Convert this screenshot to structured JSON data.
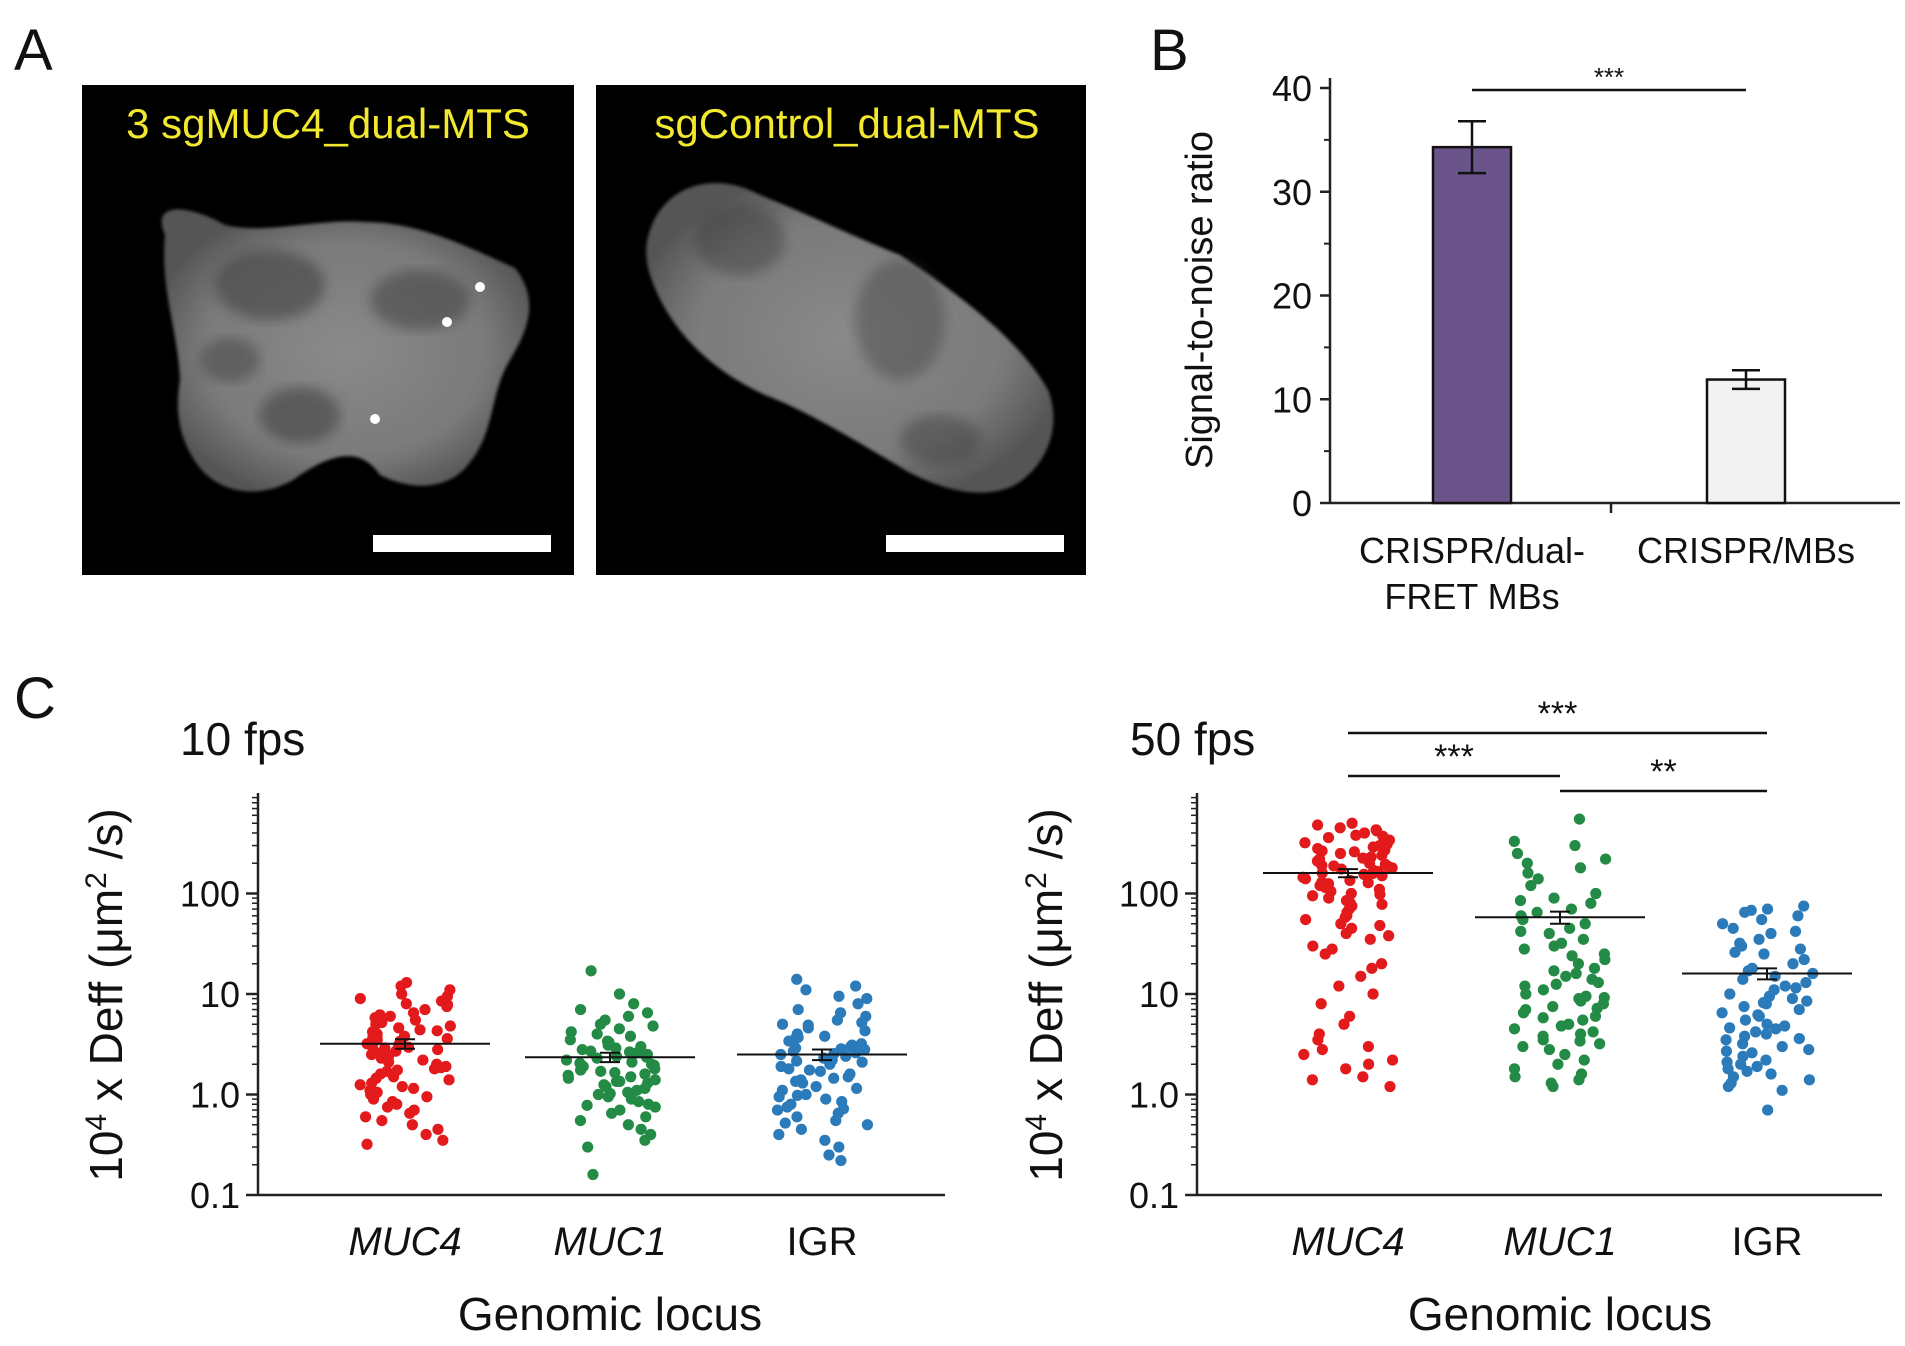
{
  "panels": {
    "a": {
      "letter": "A",
      "images": [
        {
          "label": "3 sgMUC4_dual-MTS",
          "label_color": "#f2e82e"
        },
        {
          "label": "sgControl_dual-MTS",
          "label_color": "#f2e82e"
        }
      ]
    },
    "b": {
      "letter": "B"
    },
    "c": {
      "letter": "C"
    }
  },
  "chart_data": [
    {
      "id": "B",
      "type": "bar",
      "title": "",
      "xlabel": "",
      "ylabel": "Signal-to-noise ratio",
      "ylim": [
        0,
        40
      ],
      "yticks": [
        "0",
        "10",
        "20",
        "30",
        "40"
      ],
      "categories": [
        "CRISPR/dual-FRET MBs",
        "CRISPR/MBs"
      ],
      "category_lines": [
        [
          "CRISPR/dual-",
          "FRET MBs"
        ],
        [
          "CRISPR/MBs"
        ]
      ],
      "values": [
        34.3,
        11.9
      ],
      "errors": [
        2.5,
        0.9
      ],
      "colors": [
        "#6a5489",
        "#f2f2f2"
      ],
      "significance": [
        {
          "from": 0,
          "to": 1,
          "label": "***"
        }
      ]
    },
    {
      "id": "C-10fps",
      "type": "scatter",
      "title": "10 fps",
      "xlabel": "Genomic locus",
      "ylabel_base": "10",
      "ylabel_exp": "4",
      "ylabel_mid": " x Deff (μm",
      "ylabel_exp2": "2",
      "ylabel_end": " /s)",
      "yscale": "log",
      "ylim": [
        0.1,
        1000
      ],
      "yticks": [
        "0.1",
        "1.0",
        "10",
        "100"
      ],
      "categories": [
        "MUC4",
        "MUC1",
        "IGR"
      ],
      "category_italic": [
        true,
        true,
        false
      ],
      "colors": [
        "#e31a1c",
        "#238b45",
        "#2b7bba"
      ],
      "means": [
        3.2,
        2.35,
        2.5
      ],
      "sem": [
        0.35,
        0.25,
        0.3
      ],
      "points": [
        [
          13,
          11,
          10,
          9.5,
          9,
          8.5,
          8,
          7.5,
          7,
          6.5,
          6.2,
          6,
          5.5,
          5.2,
          5,
          4.8,
          4.6,
          4.4,
          4.2,
          4,
          3.9,
          3.8,
          3.6,
          3.5,
          3.4,
          3.3,
          3.2,
          3.1,
          3,
          2.9,
          2.8,
          2.7,
          2.6,
          2.5,
          2.4,
          2.3,
          2.2,
          2.1,
          2,
          1.9,
          1.8,
          1.75,
          1.7,
          1.6,
          1.5,
          1.45,
          1.4,
          1.3,
          1.25,
          1.2,
          1.1,
          1.05,
          1,
          0.95,
          0.9,
          0.85,
          0.8,
          0.75,
          0.7,
          0.65,
          0.6,
          0.55,
          0.5,
          0.45,
          0.4,
          0.35,
          0.32,
          12,
          7.8,
          5.8,
          4.3,
          3.7,
          2.95,
          2.45,
          1.85,
          1.15
        ],
        [
          17,
          10,
          8,
          7,
          6,
          5.5,
          5,
          4.5,
          4.2,
          4,
          3.8,
          3.5,
          3.3,
          3.1,
          3,
          2.8,
          2.7,
          2.6,
          2.5,
          2.4,
          2.3,
          2.2,
          2.1,
          2,
          1.95,
          1.9,
          1.8,
          1.75,
          1.7,
          1.6,
          1.55,
          1.5,
          1.45,
          1.4,
          1.35,
          1.3,
          1.25,
          1.2,
          1.15,
          1.1,
          1.05,
          1,
          0.95,
          0.9,
          0.85,
          0.8,
          0.75,
          0.7,
          0.65,
          0.6,
          0.55,
          0.5,
          0.45,
          0.4,
          0.35,
          0.3,
          0.16,
          3.4,
          2.9,
          2.65,
          2.35,
          2.05,
          1.65,
          1.35,
          1.02,
          0.78,
          6.5,
          4.8
        ],
        [
          14,
          11,
          9,
          8,
          7,
          6,
          5.5,
          5,
          4.6,
          4.3,
          4,
          3.8,
          3.6,
          3.4,
          3.2,
          3,
          2.9,
          2.8,
          2.7,
          2.6,
          2.5,
          2.4,
          2.3,
          2.2,
          2.1,
          2,
          1.9,
          1.8,
          1.7,
          1.6,
          1.5,
          1.45,
          1.4,
          1.3,
          1.2,
          1.15,
          1.1,
          1,
          0.95,
          0.9,
          0.85,
          0.8,
          0.75,
          0.7,
          0.65,
          0.6,
          0.55,
          0.5,
          0.45,
          0.4,
          0.35,
          0.3,
          0.25,
          0.22,
          12,
          6.5,
          5.2,
          3.7,
          3.1,
          2.55,
          2.15,
          1.75,
          1.35,
          0.98,
          0.72,
          0.52,
          9.5,
          4.9,
          2.85
        ]
      ]
    },
    {
      "id": "C-50fps",
      "type": "scatter",
      "title": "50 fps",
      "xlabel": "Genomic locus",
      "ylabel_base": "10",
      "ylabel_exp": "4",
      "ylabel_mid": " x Deff (μm",
      "ylabel_exp2": "2",
      "ylabel_end": " /s)",
      "yscale": "log",
      "ylim": [
        0.1,
        1000
      ],
      "yticks": [
        "0.1",
        "1.0",
        "10",
        "100"
      ],
      "categories": [
        "MUC4",
        "MUC1",
        "IGR"
      ],
      "category_italic": [
        true,
        true,
        false
      ],
      "colors": [
        "#e31a1c",
        "#238b45",
        "#2b7bba"
      ],
      "means": [
        160,
        58,
        16
      ],
      "sem": [
        15,
        8,
        2
      ],
      "points": [
        [
          500,
          450,
          420,
          400,
          380,
          360,
          340,
          320,
          300,
          290,
          280,
          270,
          260,
          250,
          240,
          230,
          220,
          210,
          200,
          195,
          190,
          185,
          180,
          175,
          170,
          165,
          160,
          155,
          150,
          145,
          140,
          135,
          130,
          125,
          120,
          115,
          110,
          105,
          100,
          95,
          90,
          85,
          80,
          75,
          70,
          65,
          60,
          55,
          50,
          45,
          40,
          35,
          30,
          25,
          20,
          15,
          10,
          8,
          6,
          5,
          4,
          3.5,
          3,
          2.8,
          2.5,
          2.2,
          2,
          1.8,
          1.5,
          1.4,
          1.2,
          480,
          430,
          370,
          310,
          265,
          225,
          188,
          158,
          128,
          98,
          78,
          58,
          48,
          38,
          28,
          18,
          12
        ],
        [
          550,
          330,
          300,
          250,
          220,
          200,
          180,
          160,
          140,
          120,
          100,
          90,
          80,
          70,
          60,
          55,
          50,
          45,
          40,
          35,
          30,
          28,
          25,
          22,
          20,
          18,
          16,
          15,
          14,
          13,
          12,
          11,
          10,
          9.5,
          9,
          8.5,
          8,
          7.5,
          7,
          6.5,
          6,
          5.5,
          5,
          4.8,
          4.5,
          4.2,
          4,
          3.8,
          3.5,
          3.2,
          3,
          2.8,
          2.5,
          2.2,
          2,
          1.8,
          1.6,
          1.5,
          1.4,
          1.2,
          1.3,
          85,
          65,
          42,
          32,
          24,
          17,
          12.5,
          9.2,
          7.2,
          5.8,
          3.4
        ],
        [
          75,
          70,
          65,
          60,
          55,
          50,
          45,
          40,
          35,
          32,
          30,
          28,
          25,
          22,
          20,
          18,
          16,
          15,
          14,
          13,
          12,
          11,
          10,
          9.5,
          9,
          8.5,
          8,
          7.5,
          7,
          6.5,
          6,
          5.5,
          5,
          4.8,
          4.5,
          4.2,
          4,
          3.8,
          3.5,
          3.2,
          3,
          2.8,
          2.6,
          2.4,
          2.2,
          2,
          1.9,
          1.8,
          1.7,
          1.6,
          1.5,
          1.4,
          1.3,
          1.2,
          1.1,
          0.7,
          68,
          42,
          26,
          17,
          11.5,
          8.2,
          6.2,
          4.6,
          3.6,
          2.7,
          2.1
        ]
      ],
      "significance": [
        {
          "from": 0,
          "to": 2,
          "label": "***"
        },
        {
          "from": 0,
          "to": 1,
          "label": "***"
        },
        {
          "from": 1,
          "to": 2,
          "label": "**"
        }
      ]
    }
  ]
}
